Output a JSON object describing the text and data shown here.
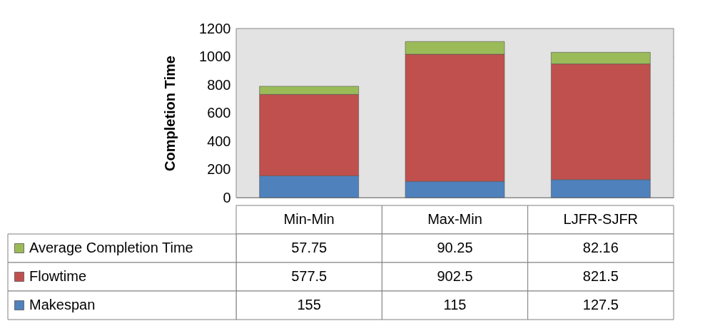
{
  "chart_data": {
    "type": "bar",
    "stacked": true,
    "ylabel": "Completion Time",
    "categories": [
      "Min-Min",
      "Max-Min",
      "LJFR-SJFR"
    ],
    "series": [
      {
        "name": "Makespan",
        "color": "#4f81bd",
        "values": [
          155,
          115,
          127.5
        ]
      },
      {
        "name": "Flowtime",
        "color": "#c0504d",
        "values": [
          577.5,
          902.5,
          821.5
        ]
      },
      {
        "name": "Average Completion Time",
        "color": "#9bbb59",
        "values": [
          57.75,
          90.25,
          82.16
        ]
      }
    ],
    "ylim": [
      0,
      1200
    ],
    "yticks": [
      0,
      200,
      400,
      600,
      800,
      1000,
      1200
    ],
    "grid": "y",
    "data_labels": true,
    "legend": "bottom left"
  }
}
